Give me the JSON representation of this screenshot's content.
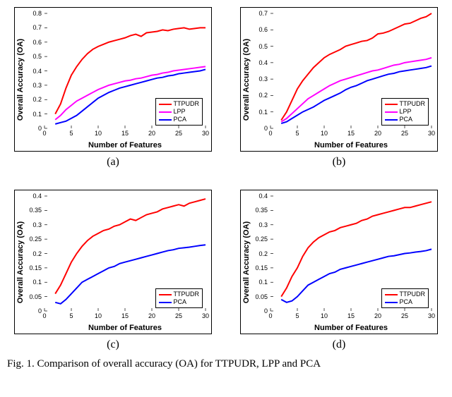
{
  "caption": "Fig. 1.   Comparison of overall accuracy (OA) for TTPUDR, LPP and PCA",
  "xlabel": "Number of Features",
  "ylabel": "Overall Accuracy (OA)",
  "legend": {
    "ttpudr": "TTPUDR",
    "lpp": "LPP",
    "pca": "PCA"
  },
  "colors": {
    "ttpudr": "#ff0000",
    "lpp": "#ff00ff",
    "pca": "#0000ff",
    "axis": "#000000",
    "bg": "#ffffff"
  },
  "panels": [
    {
      "label": "(a)",
      "xlim": [
        0,
        30
      ],
      "ylim": [
        0,
        0.8
      ],
      "xticks": [
        0,
        5,
        10,
        15,
        20,
        25,
        30
      ],
      "yticks": [
        0,
        0.1,
        0.2,
        0.3,
        0.4,
        0.5,
        0.6,
        0.7,
        0.8
      ],
      "series": [
        {
          "name": "ttpudr",
          "x": [
            2,
            3,
            4,
            5,
            6,
            7,
            8,
            9,
            10,
            11,
            12,
            13,
            14,
            15,
            16,
            17,
            18,
            19,
            20,
            21,
            22,
            23,
            24,
            25,
            26,
            27,
            28,
            29,
            30
          ],
          "y": [
            0.1,
            0.17,
            0.28,
            0.37,
            0.43,
            0.48,
            0.52,
            0.55,
            0.57,
            0.585,
            0.6,
            0.61,
            0.62,
            0.63,
            0.645,
            0.655,
            0.64,
            0.665,
            0.67,
            0.675,
            0.685,
            0.68,
            0.69,
            0.695,
            0.7,
            0.69,
            0.695,
            0.7,
            0.7
          ]
        },
        {
          "name": "lpp",
          "x": [
            2,
            3,
            4,
            5,
            6,
            7,
            8,
            9,
            10,
            11,
            12,
            13,
            14,
            15,
            16,
            17,
            18,
            19,
            20,
            21,
            22,
            23,
            24,
            25,
            26,
            27,
            28,
            29,
            30
          ],
          "y": [
            0.06,
            0.09,
            0.13,
            0.16,
            0.19,
            0.21,
            0.23,
            0.25,
            0.27,
            0.285,
            0.3,
            0.31,
            0.32,
            0.33,
            0.335,
            0.345,
            0.35,
            0.36,
            0.37,
            0.375,
            0.385,
            0.39,
            0.4,
            0.405,
            0.41,
            0.415,
            0.42,
            0.425,
            0.43
          ]
        },
        {
          "name": "pca",
          "x": [
            2,
            3,
            4,
            5,
            6,
            7,
            8,
            9,
            10,
            11,
            12,
            13,
            14,
            15,
            16,
            17,
            18,
            19,
            20,
            21,
            22,
            23,
            24,
            25,
            26,
            27,
            28,
            29,
            30
          ],
          "y": [
            0.03,
            0.04,
            0.05,
            0.07,
            0.09,
            0.12,
            0.15,
            0.18,
            0.21,
            0.23,
            0.25,
            0.265,
            0.28,
            0.29,
            0.3,
            0.31,
            0.32,
            0.33,
            0.34,
            0.35,
            0.355,
            0.365,
            0.37,
            0.38,
            0.385,
            0.39,
            0.395,
            0.4,
            0.41
          ]
        }
      ]
    },
    {
      "label": "(b)",
      "xlim": [
        0,
        30
      ],
      "ylim": [
        0,
        0.7
      ],
      "xticks": [
        0,
        5,
        10,
        15,
        20,
        25,
        30
      ],
      "yticks": [
        0,
        0.1,
        0.2,
        0.3,
        0.4,
        0.5,
        0.6,
        0.7
      ],
      "series": [
        {
          "name": "ttpudr",
          "x": [
            2,
            3,
            4,
            5,
            6,
            7,
            8,
            9,
            10,
            11,
            12,
            13,
            14,
            15,
            16,
            17,
            18,
            19,
            20,
            21,
            22,
            23,
            24,
            25,
            26,
            27,
            28,
            29,
            30
          ],
          "y": [
            0.05,
            0.1,
            0.17,
            0.24,
            0.29,
            0.33,
            0.37,
            0.4,
            0.43,
            0.45,
            0.465,
            0.48,
            0.5,
            0.51,
            0.52,
            0.53,
            0.535,
            0.55,
            0.575,
            0.58,
            0.59,
            0.605,
            0.62,
            0.635,
            0.64,
            0.655,
            0.67,
            0.68,
            0.7
          ]
        },
        {
          "name": "lpp",
          "x": [
            2,
            3,
            4,
            5,
            6,
            7,
            8,
            9,
            10,
            11,
            12,
            13,
            14,
            15,
            16,
            17,
            18,
            19,
            20,
            21,
            22,
            23,
            24,
            25,
            26,
            27,
            28,
            29,
            30
          ],
          "y": [
            0.04,
            0.06,
            0.09,
            0.12,
            0.15,
            0.18,
            0.2,
            0.22,
            0.24,
            0.26,
            0.275,
            0.29,
            0.3,
            0.31,
            0.32,
            0.33,
            0.34,
            0.35,
            0.355,
            0.365,
            0.375,
            0.385,
            0.39,
            0.4,
            0.405,
            0.41,
            0.415,
            0.42,
            0.43
          ]
        },
        {
          "name": "pca",
          "x": [
            2,
            3,
            4,
            5,
            6,
            7,
            8,
            9,
            10,
            11,
            12,
            13,
            14,
            15,
            16,
            17,
            18,
            19,
            20,
            21,
            22,
            23,
            24,
            25,
            26,
            27,
            28,
            29,
            30
          ],
          "y": [
            0.03,
            0.04,
            0.06,
            0.08,
            0.1,
            0.115,
            0.13,
            0.15,
            0.17,
            0.185,
            0.2,
            0.215,
            0.235,
            0.25,
            0.26,
            0.275,
            0.29,
            0.3,
            0.31,
            0.32,
            0.33,
            0.335,
            0.345,
            0.35,
            0.355,
            0.36,
            0.365,
            0.37,
            0.38
          ]
        }
      ]
    },
    {
      "label": "(c)",
      "xlim": [
        0,
        30
      ],
      "ylim": [
        0,
        0.4
      ],
      "xticks": [
        0,
        5,
        10,
        15,
        20,
        25,
        30
      ],
      "yticks": [
        0,
        0.05,
        0.1,
        0.15,
        0.2,
        0.25,
        0.3,
        0.35,
        0.4
      ],
      "series": [
        {
          "name": "ttpudr",
          "x": [
            2,
            3,
            4,
            5,
            6,
            7,
            8,
            9,
            10,
            11,
            12,
            13,
            14,
            15,
            16,
            17,
            18,
            19,
            20,
            21,
            22,
            23,
            24,
            25,
            26,
            27,
            28,
            29,
            30
          ],
          "y": [
            0.06,
            0.09,
            0.13,
            0.17,
            0.2,
            0.225,
            0.245,
            0.26,
            0.27,
            0.28,
            0.285,
            0.295,
            0.3,
            0.31,
            0.32,
            0.315,
            0.325,
            0.335,
            0.34,
            0.345,
            0.355,
            0.36,
            0.365,
            0.37,
            0.365,
            0.375,
            0.38,
            0.385,
            0.39
          ]
        },
        {
          "name": "pca",
          "x": [
            2,
            3,
            4,
            5,
            6,
            7,
            8,
            9,
            10,
            11,
            12,
            13,
            14,
            15,
            16,
            17,
            18,
            19,
            20,
            21,
            22,
            23,
            24,
            25,
            26,
            27,
            28,
            29,
            30
          ],
          "y": [
            0.03,
            0.025,
            0.04,
            0.06,
            0.08,
            0.1,
            0.11,
            0.12,
            0.13,
            0.14,
            0.15,
            0.155,
            0.165,
            0.17,
            0.175,
            0.18,
            0.185,
            0.19,
            0.195,
            0.2,
            0.205,
            0.21,
            0.213,
            0.218,
            0.22,
            0.222,
            0.225,
            0.228,
            0.23
          ]
        }
      ]
    },
    {
      "label": "(d)",
      "xlim": [
        0,
        30
      ],
      "ylim": [
        0,
        0.4
      ],
      "xticks": [
        0,
        5,
        10,
        15,
        20,
        25,
        30
      ],
      "yticks": [
        0,
        0.05,
        0.1,
        0.15,
        0.2,
        0.25,
        0.3,
        0.35,
        0.4
      ],
      "series": [
        {
          "name": "ttpudr",
          "x": [
            2,
            3,
            4,
            5,
            6,
            7,
            8,
            9,
            10,
            11,
            12,
            13,
            14,
            15,
            16,
            17,
            18,
            19,
            20,
            21,
            22,
            23,
            24,
            25,
            26,
            27,
            28,
            29,
            30
          ],
          "y": [
            0.05,
            0.08,
            0.12,
            0.15,
            0.19,
            0.22,
            0.24,
            0.255,
            0.265,
            0.275,
            0.28,
            0.29,
            0.295,
            0.3,
            0.305,
            0.315,
            0.32,
            0.33,
            0.335,
            0.34,
            0.345,
            0.35,
            0.355,
            0.36,
            0.36,
            0.365,
            0.37,
            0.375,
            0.38
          ]
        },
        {
          "name": "pca",
          "x": [
            2,
            3,
            4,
            5,
            6,
            7,
            8,
            9,
            10,
            11,
            12,
            13,
            14,
            15,
            16,
            17,
            18,
            19,
            20,
            21,
            22,
            23,
            24,
            25,
            26,
            27,
            28,
            29,
            30
          ],
          "y": [
            0.04,
            0.03,
            0.035,
            0.05,
            0.07,
            0.09,
            0.1,
            0.11,
            0.12,
            0.13,
            0.135,
            0.145,
            0.15,
            0.155,
            0.16,
            0.165,
            0.17,
            0.175,
            0.18,
            0.185,
            0.19,
            0.192,
            0.196,
            0.2,
            0.202,
            0.205,
            0.207,
            0.21,
            0.215
          ]
        }
      ]
    }
  ]
}
